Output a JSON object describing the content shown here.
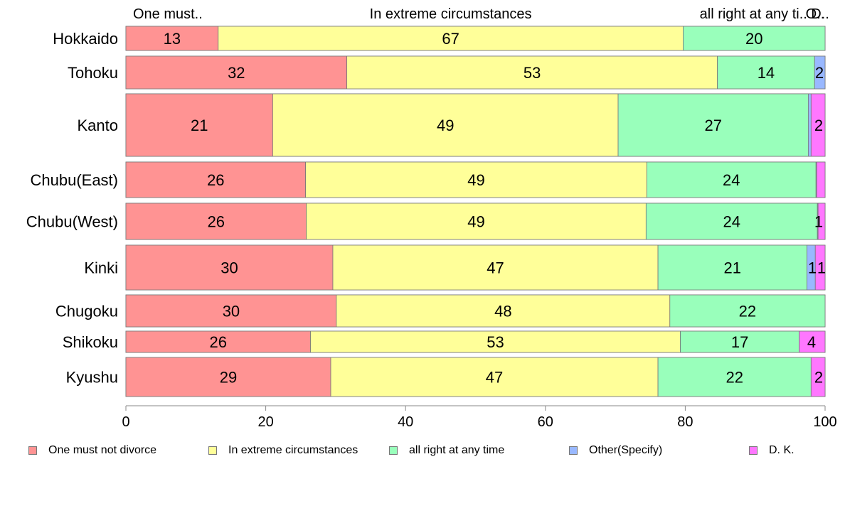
{
  "chart_data": {
    "type": "bar",
    "orientation": "horizontal",
    "stacked": true,
    "categories": [
      "Hokkaido",
      "Tohoku",
      "Kanto",
      "Chubu(East)",
      "Chubu(West)",
      "Kinki",
      "Chugoku",
      "Shikoku",
      "Kyushu"
    ],
    "series": [
      {
        "name": "One must not divorce",
        "header": "One must..",
        "color": "#ff9393",
        "values": [
          13.2,
          31.6,
          21.0,
          25.7,
          25.8,
          29.6,
          30.1,
          26.4,
          29.3
        ],
        "labels": [
          "13",
          "32",
          "21",
          "26",
          "26",
          "30",
          "30",
          "26",
          "29"
        ]
      },
      {
        "name": "In extreme circumstances",
        "header": "In extreme circumstances",
        "color": "#ffff99",
        "values": [
          66.5,
          53.0,
          49.4,
          48.8,
          48.6,
          46.5,
          47.7,
          52.9,
          46.8
        ],
        "labels": [
          "67",
          "53",
          "49",
          "49",
          "49",
          "47",
          "48",
          "53",
          "47"
        ]
      },
      {
        "name": "all right at any time",
        "header": "all right at any ti..",
        "color": "#99ffbb",
        "values": [
          20.3,
          13.9,
          27.2,
          24.2,
          24.5,
          21.3,
          22.2,
          17.0,
          21.9
        ],
        "labels": [
          "20",
          "14",
          "27",
          "24",
          "24",
          "21",
          "22",
          "17",
          "22"
        ]
      },
      {
        "name": "Other(Specify)",
        "header": "O..",
        "color": "#99b8ff",
        "values": [
          0.0,
          1.5,
          0.4,
          0.1,
          0.1,
          1.2,
          0.0,
          0.0,
          0.0
        ],
        "labels": [
          "",
          "2",
          "",
          "",
          "",
          "1",
          "",
          "",
          ""
        ]
      },
      {
        "name": "D. K.",
        "header": "D..",
        "color": "#ff77ff",
        "values": [
          0.0,
          0.0,
          2.0,
          1.2,
          1.0,
          1.4,
          0.0,
          3.7,
          2.0
        ],
        "labels": [
          "",
          "",
          "2",
          "",
          "1",
          "1",
          "",
          "4",
          "2"
        ]
      }
    ],
    "xlim": [
      0,
      100
    ],
    "xticks": [
      "0",
      "20",
      "40",
      "60",
      "80",
      "100"
    ],
    "xticks_values": [
      0,
      20,
      40,
      60,
      80,
      100
    ],
    "legend_position": "bottom",
    "grid": false,
    "title": "",
    "xlabel": "",
    "ylabel": ""
  }
}
